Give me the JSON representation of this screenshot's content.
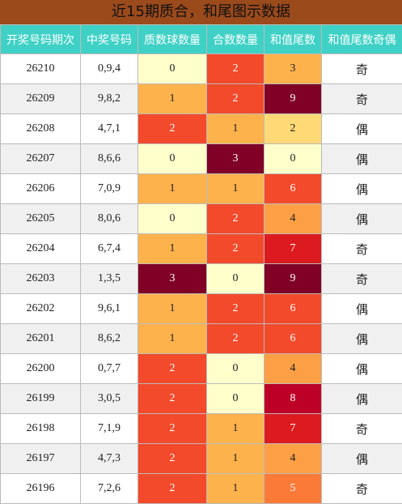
{
  "table": {
    "title": "近15期质合，和尾图示数据",
    "headers": [
      "开奖号码期次",
      "中奖号码",
      "质数球数量",
      "合数数量",
      "和值尾数",
      "和值尾数奇偶"
    ],
    "heat_colors": [
      "#ffffcc",
      "#fff0a8",
      "#fed976",
      "#feb24c",
      "#fd9f44",
      "#fc7a38",
      "#f34a2b",
      "#dc1a1f",
      "#bd0026",
      "#800026"
    ],
    "rows": [
      [
        "26210",
        "0,9,4",
        0,
        2,
        3,
        "奇"
      ],
      [
        "26209",
        "9,8,2",
        1,
        2,
        9,
        "奇"
      ],
      [
        "26208",
        "4,7,1",
        2,
        1,
        2,
        "偶"
      ],
      [
        "26207",
        "8,6,6",
        0,
        3,
        0,
        "偶"
      ],
      [
        "26206",
        "7,0,9",
        1,
        1,
        6,
        "偶"
      ],
      [
        "26205",
        "8,0,6",
        0,
        2,
        4,
        "偶"
      ],
      [
        "26204",
        "6,7,4",
        1,
        2,
        7,
        "奇"
      ],
      [
        "26203",
        "1,3,5",
        3,
        0,
        9,
        "奇"
      ],
      [
        "26202",
        "9,6,1",
        1,
        2,
        6,
        "偶"
      ],
      [
        "26201",
        "8,6,2",
        1,
        2,
        6,
        "偶"
      ],
      [
        "26200",
        "0,7,7",
        2,
        0,
        4,
        "偶"
      ],
      [
        "26199",
        "3,0,5",
        2,
        0,
        8,
        "偶"
      ],
      [
        "26198",
        "7,1,9",
        2,
        1,
        7,
        "奇"
      ],
      [
        "26197",
        "4,7,3",
        2,
        1,
        4,
        "偶"
      ],
      [
        "26196",
        "7,2,6",
        2,
        1,
        5,
        "奇"
      ]
    ]
  }
}
